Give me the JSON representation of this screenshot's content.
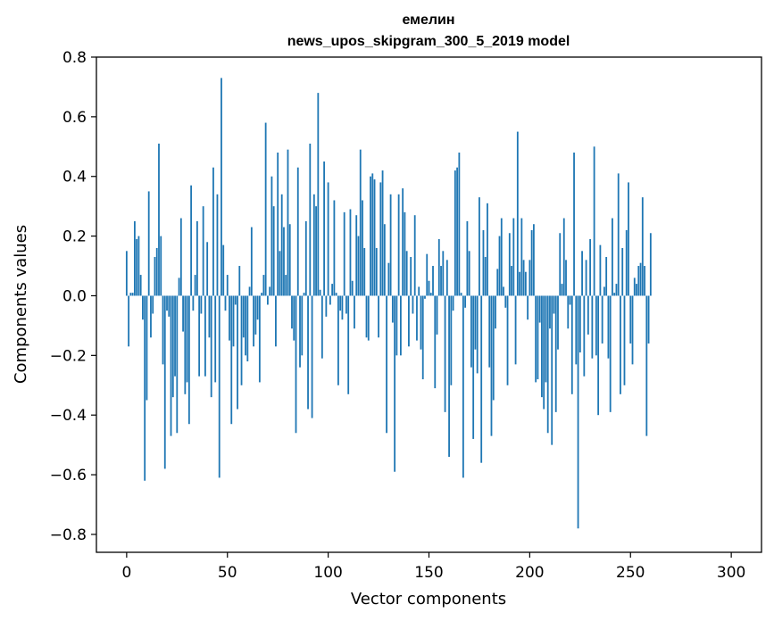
{
  "chart_data": {
    "type": "bar",
    "title": "емелин",
    "subtitle": "news_upos_skipgram_300_5_2019 model",
    "xlabel": "Vector components",
    "ylabel": "Components values",
    "xlim": [
      -15,
      315
    ],
    "ylim": [
      -0.86,
      0.8
    ],
    "xticks": [
      0,
      50,
      100,
      150,
      200,
      250,
      300
    ],
    "xtick_labels": [
      "0",
      "50",
      "100",
      "150",
      "200",
      "250",
      "300"
    ],
    "yticks": [
      0.8,
      0.6,
      0.4,
      0.2,
      0.0,
      -0.2,
      -0.4,
      -0.6,
      -0.8
    ],
    "ytick_labels": [
      "0.8",
      "0.6",
      "0.4",
      "0.2",
      "0.0",
      "−0.2",
      "−0.4",
      "−0.6",
      "−0.8"
    ],
    "bar_color": "#1f77b4",
    "grid": false,
    "legend": "none",
    "values": [
      0.15,
      -0.17,
      0.01,
      0.01,
      0.25,
      0.19,
      0.2,
      0.07,
      -0.08,
      -0.62,
      -0.35,
      0.35,
      -0.14,
      -0.06,
      0.13,
      0.16,
      0.51,
      0.2,
      -0.23,
      -0.58,
      -0.05,
      -0.07,
      -0.47,
      -0.34,
      -0.27,
      -0.46,
      0.06,
      0.26,
      -0.12,
      -0.33,
      -0.29,
      -0.43,
      0.37,
      -0.05,
      0.07,
      0.25,
      -0.27,
      -0.06,
      0.3,
      -0.27,
      0.18,
      -0.14,
      -0.34,
      0.43,
      -0.29,
      0.34,
      -0.61,
      0.73,
      0.17,
      -0.05,
      0.07,
      -0.15,
      -0.43,
      -0.17,
      -0.03,
      -0.38,
      0.1,
      -0.3,
      -0.14,
      -0.2,
      -0.22,
      0.03,
      0.23,
      -0.17,
      -0.13,
      -0.08,
      -0.29,
      0.01,
      0.07,
      0.58,
      -0.03,
      0.03,
      0.4,
      0.3,
      -0.17,
      0.48,
      0.15,
      0.34,
      0.23,
      0.07,
      0.49,
      0.24,
      -0.11,
      -0.15,
      -0.46,
      0.43,
      -0.24,
      -0.2,
      0.01,
      0.25,
      -0.38,
      0.51,
      -0.41,
      0.34,
      0.3,
      0.68,
      0.02,
      -0.21,
      0.45,
      -0.07,
      0.38,
      -0.03,
      0.04,
      0.32,
      0.01,
      -0.3,
      -0.05,
      -0.08,
      0.28,
      -0.06,
      -0.33,
      0.29,
      0.05,
      -0.11,
      0.27,
      0.2,
      0.49,
      0.32,
      0.16,
      -0.14,
      -0.15,
      0.4,
      0.41,
      0.39,
      0.16,
      -0.14,
      0.38,
      0.42,
      0.24,
      -0.46,
      0.11,
      0.34,
      -0.09,
      -0.59,
      -0.2,
      0.34,
      -0.2,
      0.36,
      0.28,
      0.15,
      -0.17,
      0.13,
      -0.06,
      0.27,
      -0.15,
      0.03,
      -0.18,
      -0.28,
      -0.01,
      0.14,
      0.05,
      0.01,
      0.1,
      -0.31,
      -0.13,
      0.19,
      0.1,
      0.15,
      -0.39,
      0.12,
      -0.54,
      -0.3,
      -0.05,
      0.42,
      0.43,
      0.48,
      0.01,
      -0.61,
      -0.04,
      0.25,
      0.15,
      -0.24,
      -0.48,
      -0.18,
      -0.26,
      0.33,
      -0.56,
      0.22,
      0.13,
      0.31,
      -0.24,
      -0.47,
      -0.35,
      -0.11,
      0.09,
      0.2,
      0.26,
      0.03,
      -0.04,
      -0.3,
      0.21,
      0.1,
      0.26,
      -0.23,
      0.55,
      0.08,
      0.26,
      0.12,
      0.08,
      -0.08,
      0.12,
      0.22,
      0.24,
      -0.29,
      -0.28,
      -0.09,
      -0.34,
      -0.38,
      -0.29,
      -0.46,
      -0.11,
      -0.5,
      -0.06,
      -0.39,
      -0.18,
      0.21,
      0.04,
      0.26,
      0.12,
      -0.11,
      -0.03,
      -0.33,
      0.48,
      -0.23,
      -0.78,
      -0.19,
      0.15,
      -0.27,
      0.12,
      -0.13,
      0.19,
      -0.21,
      0.5,
      -0.2,
      -0.4,
      0.17,
      -0.16,
      0.03,
      0.13,
      -0.21,
      -0.39,
      0.26,
      0.01,
      0.04,
      0.41,
      -0.33,
      0.16,
      -0.3,
      0.22,
      0.38,
      -0.16,
      -0.23,
      0.06,
      0.04,
      0.1,
      0.11,
      0.33,
      0.1,
      -0.47,
      -0.16,
      0.21
    ]
  }
}
